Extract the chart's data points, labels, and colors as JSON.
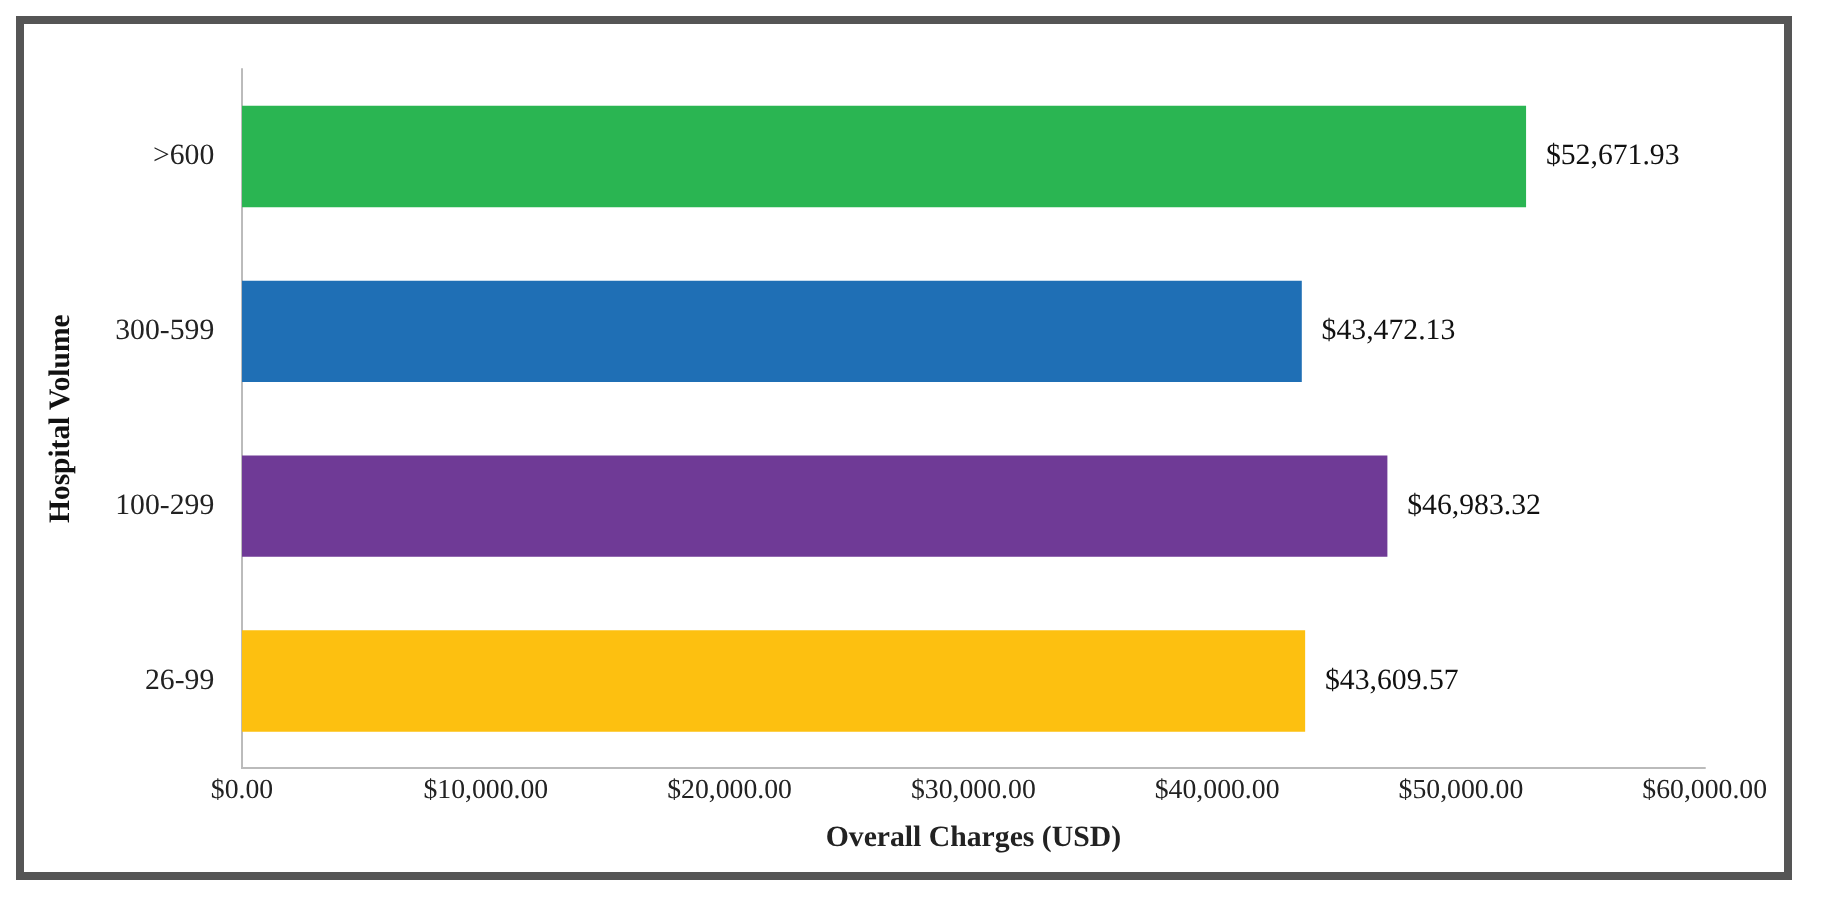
{
  "chart_data": {
    "type": "bar",
    "orientation": "horizontal",
    "xlabel": "Overall Charges (USD)",
    "ylabel": "Hospital Volume",
    "categories": [
      ">600",
      "300-599",
      "100-299",
      "26-99"
    ],
    "values": [
      52671.93,
      43472.13,
      46983.32,
      43609.57
    ],
    "colors": [
      "#2ab552",
      "#1f6fb5",
      "#6f3a96",
      "#fdc010"
    ],
    "value_labels": [
      "$52,671.93",
      "$43,472.13",
      "$46,983.32",
      "$43,609.57"
    ],
    "xlim": [
      0,
      60000
    ],
    "xticks": [
      {
        "value": 0,
        "label": "$0.00"
      },
      {
        "value": 10000,
        "label": "$10,000.00"
      },
      {
        "value": 20000,
        "label": "$20,000.00"
      },
      {
        "value": 30000,
        "label": "$30,000.00"
      },
      {
        "value": 40000,
        "label": "$40,000.00"
      },
      {
        "value": 50000,
        "label": "$50,000.00"
      },
      {
        "value": 60000,
        "label": "$60,000.00"
      }
    ],
    "grid": false,
    "legend": false
  }
}
